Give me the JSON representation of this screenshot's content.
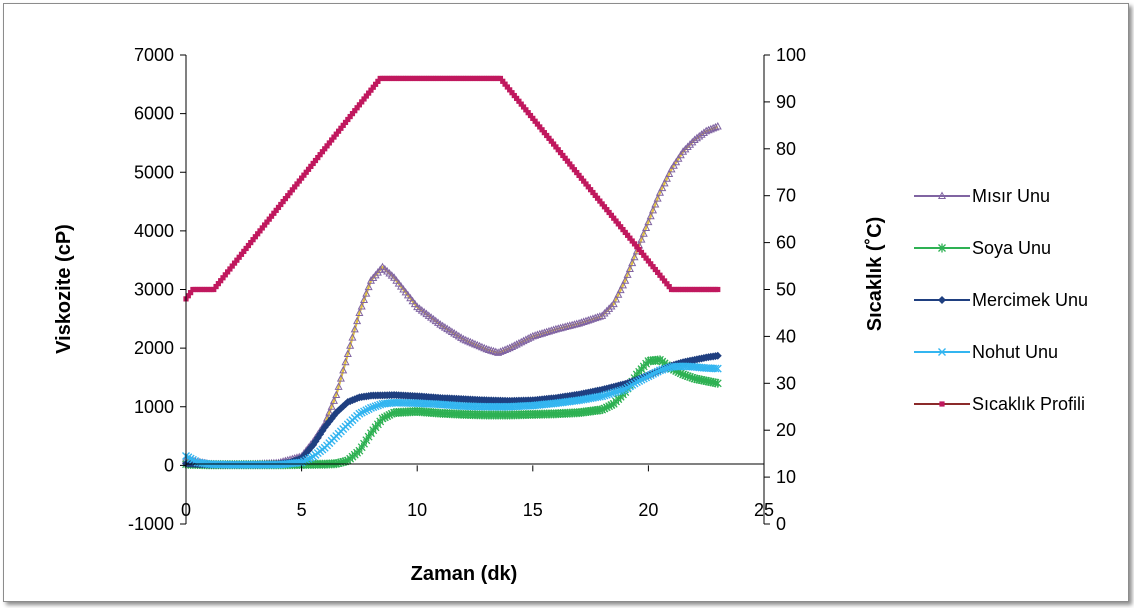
{
  "chart_data": {
    "type": "line",
    "title": "",
    "xlabel": "Zaman (dk)",
    "ylabel": "Viskozite (cP)",
    "y2label": "Sıcaklık (˚C)",
    "xlim": [
      0,
      25
    ],
    "ylim": [
      -1000,
      7000
    ],
    "y2lim": [
      0,
      100
    ],
    "x_ticks": [
      "0",
      "5",
      "10",
      "15",
      "20",
      "25"
    ],
    "y_ticks": [
      "-1000",
      "0",
      "1000",
      "2000",
      "3000",
      "4000",
      "5000",
      "6000",
      "7000"
    ],
    "y2_ticks": [
      "0",
      "10",
      "20",
      "30",
      "40",
      "50",
      "60",
      "70",
      "80",
      "90",
      "100"
    ],
    "grid": false,
    "legend_position": "right",
    "series": [
      {
        "name": "Mısır Unu",
        "axis": "left",
        "color": "#8064A2",
        "marker": "triangle",
        "points": [
          [
            0,
            100
          ],
          [
            1,
            20
          ],
          [
            2,
            15
          ],
          [
            3,
            20
          ],
          [
            4,
            40
          ],
          [
            5,
            150
          ],
          [
            5.5,
            400
          ],
          [
            6,
            700
          ],
          [
            6.5,
            1200
          ],
          [
            7,
            1900
          ],
          [
            7.5,
            2600
          ],
          [
            8,
            3150
          ],
          [
            8.5,
            3380
          ],
          [
            9,
            3200
          ],
          [
            9.5,
            2950
          ],
          [
            10,
            2700
          ],
          [
            11,
            2400
          ],
          [
            12,
            2150
          ],
          [
            13,
            1980
          ],
          [
            13.5,
            1920
          ],
          [
            14,
            2000
          ],
          [
            15,
            2200
          ],
          [
            16,
            2320
          ],
          [
            17,
            2420
          ],
          [
            18,
            2550
          ],
          [
            18.5,
            2750
          ],
          [
            19,
            3150
          ],
          [
            19.5,
            3650
          ],
          [
            20,
            4150
          ],
          [
            20.5,
            4650
          ],
          [
            21,
            5050
          ],
          [
            21.5,
            5350
          ],
          [
            22,
            5550
          ],
          [
            22.5,
            5700
          ],
          [
            23,
            5780
          ]
        ]
      },
      {
        "name": "Soya Unu",
        "axis": "left",
        "color": "#2EB153",
        "marker": "star",
        "points": [
          [
            0,
            20
          ],
          [
            1,
            10
          ],
          [
            2,
            10
          ],
          [
            3,
            10
          ],
          [
            4,
            10
          ],
          [
            5,
            15
          ],
          [
            6,
            20
          ],
          [
            6.5,
            30
          ],
          [
            7,
            80
          ],
          [
            7.5,
            250
          ],
          [
            8,
            550
          ],
          [
            8.5,
            800
          ],
          [
            9,
            900
          ],
          [
            10,
            920
          ],
          [
            11,
            890
          ],
          [
            12,
            870
          ],
          [
            13,
            860
          ],
          [
            14,
            860
          ],
          [
            15,
            870
          ],
          [
            16,
            880
          ],
          [
            17,
            900
          ],
          [
            18,
            950
          ],
          [
            18.5,
            1050
          ],
          [
            19,
            1250
          ],
          [
            19.5,
            1550
          ],
          [
            20,
            1780
          ],
          [
            20.5,
            1800
          ],
          [
            21,
            1650
          ],
          [
            21.5,
            1550
          ],
          [
            22,
            1480
          ],
          [
            23,
            1400
          ]
        ]
      },
      {
        "name": "Mercimek Unu",
        "axis": "left",
        "color": "#1F3F80",
        "marker": "diamond",
        "points": [
          [
            0,
            30
          ],
          [
            1,
            10
          ],
          [
            2,
            10
          ],
          [
            3,
            10
          ],
          [
            4,
            20
          ],
          [
            4.5,
            50
          ],
          [
            5,
            120
          ],
          [
            5.5,
            350
          ],
          [
            6,
            650
          ],
          [
            6.5,
            900
          ],
          [
            7,
            1080
          ],
          [
            7.5,
            1160
          ],
          [
            8,
            1190
          ],
          [
            9,
            1200
          ],
          [
            10,
            1180
          ],
          [
            11,
            1150
          ],
          [
            12,
            1130
          ],
          [
            13,
            1110
          ],
          [
            14,
            1100
          ],
          [
            15,
            1110
          ],
          [
            16,
            1150
          ],
          [
            17,
            1210
          ],
          [
            18,
            1290
          ],
          [
            19,
            1390
          ],
          [
            19.5,
            1460
          ],
          [
            20,
            1540
          ],
          [
            20.5,
            1620
          ],
          [
            21,
            1700
          ],
          [
            21.5,
            1760
          ],
          [
            22,
            1800
          ],
          [
            22.5,
            1840
          ],
          [
            23,
            1870
          ]
        ]
      },
      {
        "name": "Nohut Unu",
        "axis": "left",
        "color": "#33B5F0",
        "marker": "x",
        "points": [
          [
            0,
            160
          ],
          [
            0.5,
            50
          ],
          [
            1,
            20
          ],
          [
            2,
            10
          ],
          [
            3,
            10
          ],
          [
            4,
            10
          ],
          [
            5,
            50
          ],
          [
            5.5,
            150
          ],
          [
            6,
            300
          ],
          [
            6.5,
            500
          ],
          [
            7,
            700
          ],
          [
            7.5,
            880
          ],
          [
            8,
            980
          ],
          [
            8.5,
            1050
          ],
          [
            9,
            1070
          ],
          [
            10,
            1060
          ],
          [
            11,
            1040
          ],
          [
            12,
            1010
          ],
          [
            13,
            1000
          ],
          [
            14,
            1000
          ],
          [
            15,
            1020
          ],
          [
            16,
            1060
          ],
          [
            17,
            1110
          ],
          [
            18,
            1180
          ],
          [
            19,
            1300
          ],
          [
            19.5,
            1420
          ],
          [
            20,
            1520
          ],
          [
            20.5,
            1620
          ],
          [
            21,
            1680
          ],
          [
            21.5,
            1690
          ],
          [
            22,
            1680
          ],
          [
            22.5,
            1660
          ],
          [
            23,
            1650
          ]
        ]
      },
      {
        "name": "Sıcaklık Profili",
        "axis": "right",
        "color": "#C0185E",
        "line_color": "#8B2A2A",
        "marker": "square",
        "points": [
          [
            0,
            48
          ],
          [
            0.3,
            50
          ],
          [
            1,
            50
          ],
          [
            1.2,
            50
          ],
          [
            8.4,
            95
          ],
          [
            13.6,
            95
          ],
          [
            21,
            50
          ],
          [
            23,
            50
          ]
        ]
      }
    ]
  }
}
